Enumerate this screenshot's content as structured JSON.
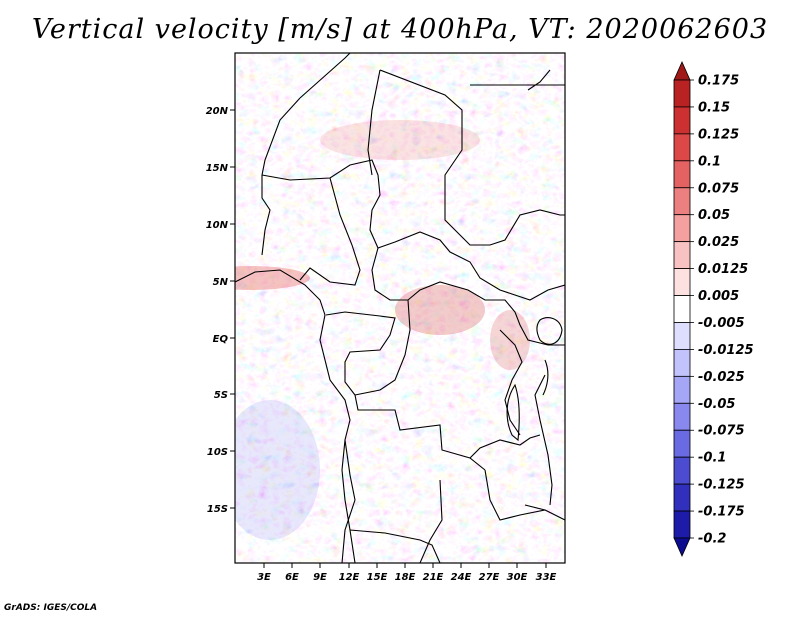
{
  "title": "Vertical velocity [m/s] at 400hPa, VT: 2020062603",
  "credit": "GrADS: IGES/COLA",
  "chart_data": {
    "type": "heatmap",
    "variable": "Vertical velocity",
    "units": "m/s",
    "level": "400hPa",
    "valid_time": "2020062603",
    "x_ticks": [
      "3E",
      "6E",
      "9E",
      "12E",
      "15E",
      "18E",
      "21E",
      "24E",
      "27E",
      "30E",
      "33E"
    ],
    "y_ticks": [
      "20N",
      "15N",
      "10N",
      "5N",
      "EQ",
      "5S",
      "10S",
      "15S"
    ],
    "x_range_deg": [
      0,
      35
    ],
    "y_range_deg": [
      -20,
      25
    ],
    "colorbar": {
      "labels": [
        "0.175",
        "0.15",
        "0.125",
        "0.1",
        "0.075",
        "0.05",
        "0.025",
        "0.0125",
        "0.005",
        "-0.005",
        "-0.0125",
        "-0.025",
        "-0.05",
        "-0.075",
        "-0.1",
        "-0.125",
        "-0.175",
        "-0.2"
      ],
      "colors": [
        "#a01818",
        "#b82222",
        "#cc3030",
        "#dc4848",
        "#e46262",
        "#ec8080",
        "#f4a0a0",
        "#f8c2c2",
        "#fde0e0",
        "#ffffff",
        "#dedefe",
        "#c2c2fc",
        "#a6a6f6",
        "#8888ee",
        "#6a6ae2",
        "#4c4cd0",
        "#3030bc",
        "#1c1ca8",
        "#0c0c90"
      ]
    }
  }
}
